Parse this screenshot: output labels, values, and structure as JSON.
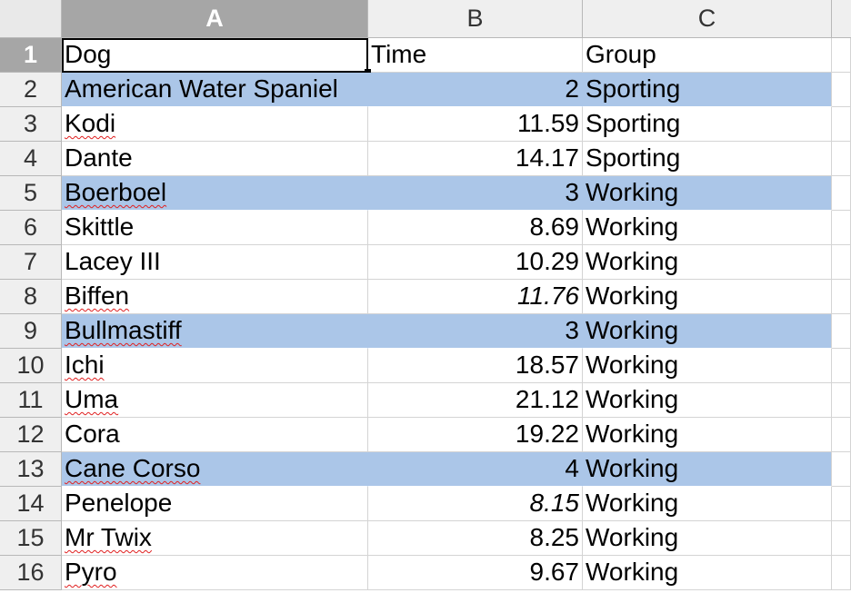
{
  "columns": [
    "A",
    "B",
    "C"
  ],
  "header_row": {
    "num": "1",
    "dog": "Dog",
    "time": "Time",
    "group": "Group"
  },
  "rows": [
    {
      "num": "2",
      "dog": "American Water Spaniel",
      "time": "2",
      "group": "Sporting",
      "highlight": true,
      "spell": false,
      "italic": false
    },
    {
      "num": "3",
      "dog": "Kodi",
      "time": "11.59",
      "group": "Sporting",
      "highlight": false,
      "spell": true,
      "italic": false
    },
    {
      "num": "4",
      "dog": "Dante",
      "time": "14.17",
      "group": "Sporting",
      "highlight": false,
      "spell": false,
      "italic": false
    },
    {
      "num": "5",
      "dog": "Boerboel",
      "time": "3",
      "group": "Working",
      "highlight": true,
      "spell": true,
      "italic": false
    },
    {
      "num": "6",
      "dog": "Skittle",
      "time": "8.69",
      "group": "Working",
      "highlight": false,
      "spell": false,
      "italic": false
    },
    {
      "num": "7",
      "dog": "Lacey III",
      "time": "10.29",
      "group": "Working",
      "highlight": false,
      "spell": false,
      "italic": false
    },
    {
      "num": "8",
      "dog": "Biffen",
      "time": "11.76",
      "group": "Working",
      "highlight": false,
      "spell": true,
      "italic": true
    },
    {
      "num": "9",
      "dog": "Bullmastiff",
      "time": "3",
      "group": "Working",
      "highlight": true,
      "spell": true,
      "italic": false
    },
    {
      "num": "10",
      "dog": "Ichi",
      "time": "18.57",
      "group": "Working",
      "highlight": false,
      "spell": true,
      "italic": false
    },
    {
      "num": "11",
      "dog": "Uma",
      "time": "21.12",
      "group": "Working",
      "highlight": false,
      "spell": true,
      "italic": false
    },
    {
      "num": "12",
      "dog": "Cora",
      "time": "19.22",
      "group": "Working",
      "highlight": false,
      "spell": false,
      "italic": false
    },
    {
      "num": "13",
      "dog": "Cane Corso",
      "time": "4",
      "group": "Working",
      "highlight": true,
      "spell": true,
      "italic": false
    },
    {
      "num": "14",
      "dog": "Penelope",
      "time": "8.15",
      "group": "Working",
      "highlight": false,
      "spell": false,
      "italic": true
    },
    {
      "num": "15",
      "dog": "Mr Twix",
      "time": "8.25",
      "group": "Working",
      "highlight": false,
      "spell": true,
      "italic": false
    },
    {
      "num": "16",
      "dog": "Pyro",
      "time": "9.67",
      "group": "Working",
      "highlight": false,
      "spell": true,
      "italic": false
    }
  ],
  "colors": {
    "highlight": "#abc6e8",
    "header_bg": "#efefef",
    "selected_header": "#a6a6a6"
  },
  "active_cell": "A1"
}
